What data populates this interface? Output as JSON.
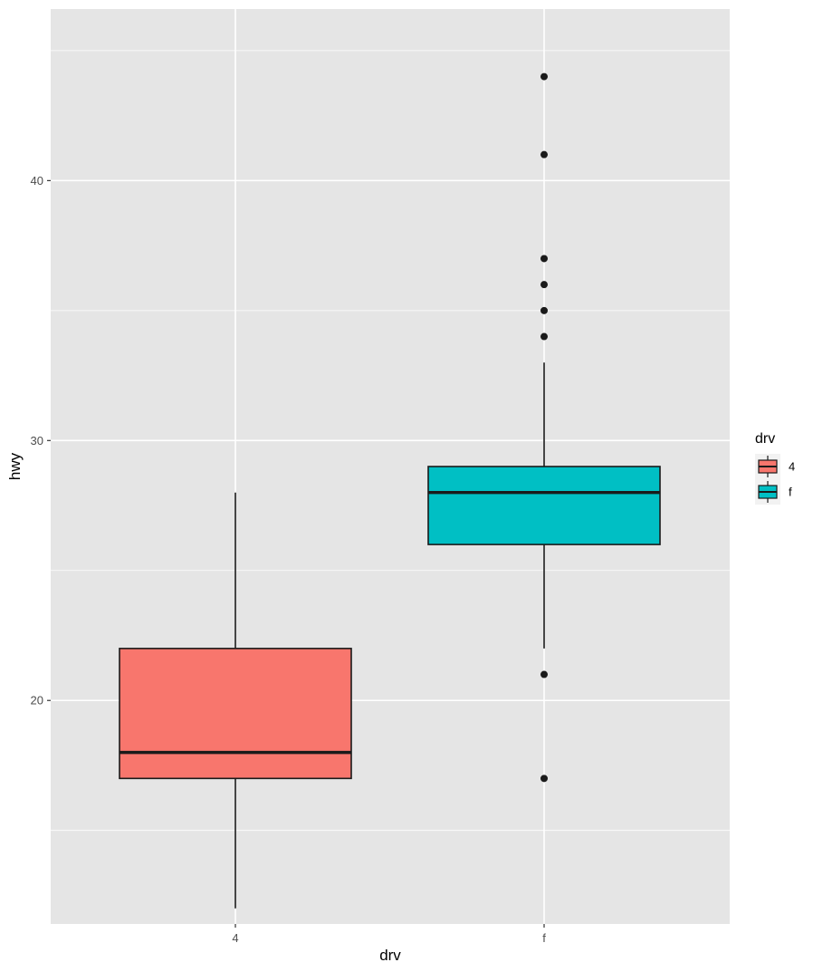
{
  "chart_data": {
    "type": "boxplot",
    "title": "",
    "xlabel": "drv",
    "ylabel": "hwy",
    "categories": [
      "4",
      "f"
    ],
    "ylim": [
      11.4,
      46.6
    ],
    "y_ticks": [
      20,
      30,
      40
    ],
    "y_tick_labels": [
      "20",
      "30",
      "40"
    ],
    "grid": true,
    "legend": {
      "title": "drv",
      "position": "right",
      "entries": [
        {
          "label": "4",
          "color": "#F8766D"
        },
        {
          "label": "f",
          "color": "#00BFC4"
        }
      ]
    },
    "boxes": [
      {
        "category": "4",
        "color": "#F8766D",
        "whisker_low": 12,
        "q1": 17,
        "median": 18,
        "q3": 22,
        "whisker_high": 28,
        "outliers": []
      },
      {
        "category": "f",
        "color": "#00BFC4",
        "whisker_low": 22,
        "q1": 26,
        "median": 28,
        "q3": 29,
        "whisker_high": 33,
        "outliers": [
          44,
          41,
          37,
          36,
          35,
          34,
          21,
          17
        ]
      }
    ]
  },
  "colors": {
    "panel_background": "#E5E5E5",
    "grid_line": "#FFFFFF",
    "box_outline": "#1A1A1A"
  }
}
